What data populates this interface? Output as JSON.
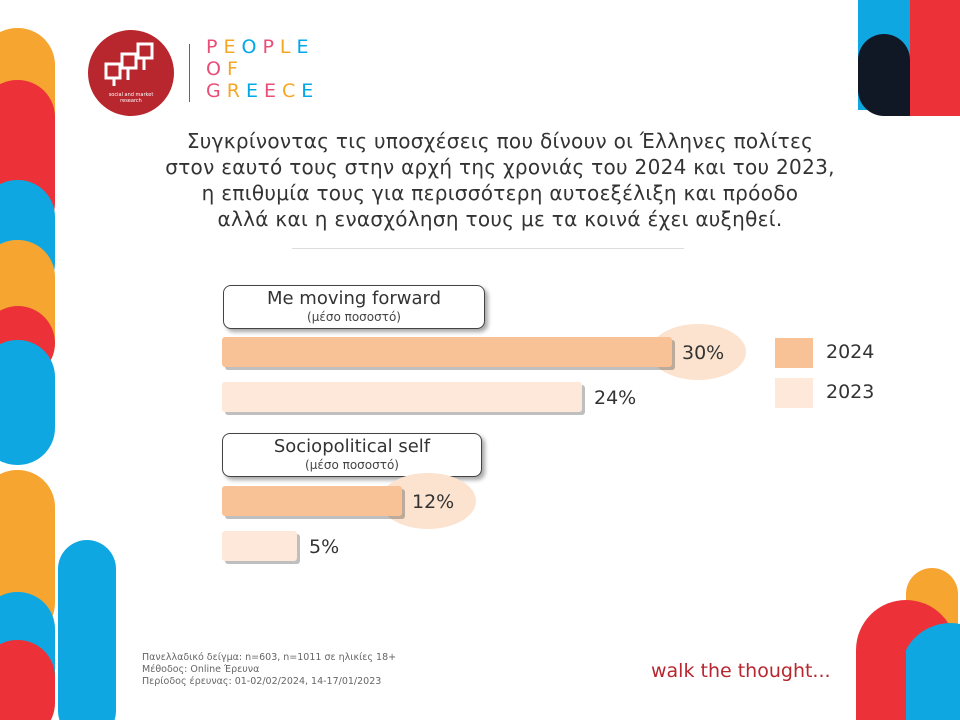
{
  "brand": {
    "logo_text_line1": "social and market",
    "logo_text_line2": "research",
    "name_line1": "PEOPLE",
    "name_line2": "OF",
    "name_line3": "GREECE",
    "letter_colors": [
      "#e94e77",
      "#f5a623",
      "#00a8e8",
      "#e94e77",
      "#f5a623",
      "#00a8e8"
    ]
  },
  "title_lines": [
    "Συγκρίνοντας τις υποσχέσεις που δίνουν οι Έλληνες πολίτες",
    "στον εαυτό τους στην αρχή της χρονιάς του 2024 και του 2023,",
    "η επιθυμία τους  για περισσότερη αυτοεξέλιξη και πρόοδο",
    "αλλά και η ενασχόληση τους με τα κοινά έχει αυξηθεί."
  ],
  "chart_data": {
    "type": "bar",
    "orientation": "horizontal",
    "categories": [
      {
        "label": "Me moving forward",
        "sublabel": "(μέσο ποσοστό)"
      },
      {
        "label": "Sociopolitical self",
        "sublabel": "(μέσο ποσοστό)"
      }
    ],
    "series": [
      {
        "name": "2024",
        "values": [
          30,
          12
        ],
        "labels": [
          "30%",
          "12%"
        ],
        "color": "#f8c296"
      },
      {
        "name": "2023",
        "values": [
          24,
          5
        ],
        "labels": [
          "24%",
          "5%"
        ],
        "color": "#fde8da"
      }
    ],
    "highlight_color": "#fbe3cf",
    "legend_position": "right",
    "grid": false
  },
  "footer": {
    "line1": "Πανελλαδικό δείγμα: n=603, n=1011 σε ηλικίες 18+",
    "line2": "Μέθοδος: Online Έρευνα",
    "line3": "Περίοδος έρευνας: 01-02/02/2024,  14-17/01/2023"
  },
  "tagline": "walk the thought...",
  "colors": {
    "red": "#ec3238",
    "orange": "#f7a531",
    "blue": "#0fa7e1",
    "dark": "#101826",
    "brand_red": "#b8262e"
  }
}
